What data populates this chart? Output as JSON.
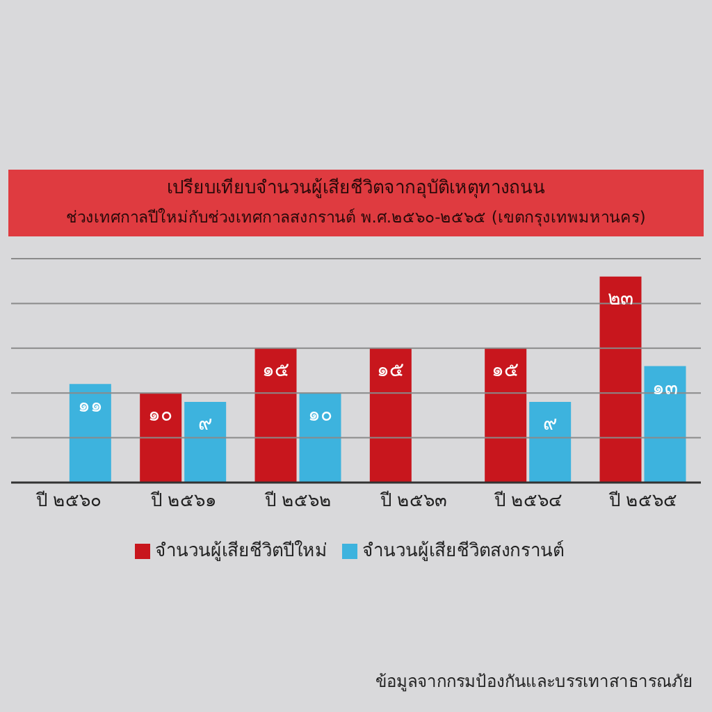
{
  "chart_data": {
    "type": "bar",
    "title": "เปรียบเทียบจำนวนผู้เสียชีวิตจากอุบัติเหตุทางถนน",
    "subtitle": "ช่วงเทศกาลปีใหม่กับช่วงเทศกาลสงกรานต์ พ.ศ.๒๕๖๐-๒๕๖๕ (เขตกรุงเทพมหานคร)",
    "categories": [
      "ปี ๒๕๖๐",
      "ปี ๒๕๖๑",
      "ปี ๒๕๖๒",
      "ปี ๒๕๖๓",
      "ปี ๒๕๖๔",
      "ปี ๒๕๖๕"
    ],
    "series": [
      {
        "name": "จำนวนผู้เสียชีวิตปีใหม่",
        "color": "#c8161d",
        "values": [
          null,
          10,
          15,
          15,
          15,
          23
        ],
        "value_labels": [
          null,
          "๑๐",
          "๑๕",
          "๑๕",
          "๑๕",
          "๒๓"
        ]
      },
      {
        "name": "จำนวนผู้เสียชีวิตสงกรานต์",
        "color": "#3db3de",
        "values": [
          11,
          9,
          10,
          null,
          9,
          13
        ],
        "value_labels": [
          "๑๑",
          "๙",
          "๑๐",
          null,
          "๙",
          "๑๓"
        ]
      }
    ],
    "ylim": [
      0,
      25
    ],
    "yticks": [
      {
        "value": 0,
        "label": null
      },
      {
        "value": 5,
        "label": null
      },
      {
        "value": 10,
        "label": null
      },
      {
        "value": 15,
        "label": null
      },
      {
        "value": 20,
        "label": null
      },
      {
        "value": 25,
        "label": null
      }
    ],
    "grid": "y",
    "legend": "bottom",
    "tick_labels": "x",
    "annotations": [
      "ข้อมูลจากกรมป้องกันและบรรเทาสาธารณภัย"
    ]
  }
}
